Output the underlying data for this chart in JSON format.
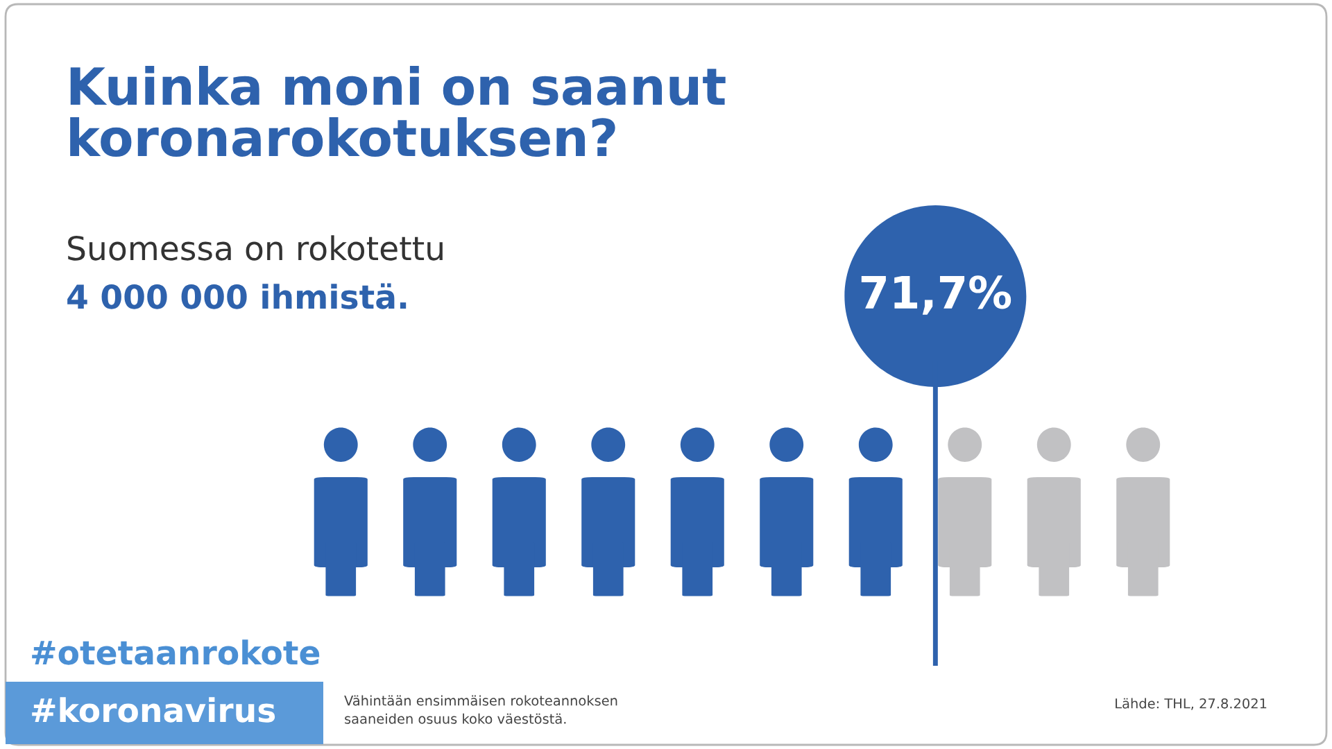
{
  "chart_data": {
    "type": "other",
    "title": "Kuinka moni on saanut\nkoronarokotuksen?",
    "subtitle": "Suomessa on rokotettu",
    "values": [
      71.7
    ],
    "value_labels": [
      "71,7%"
    ],
    "color": "#2e62ad",
    "annotations": [
      "4 000 000 ihmistä.",
      "#otetaanrokote",
      "#koronavirus",
      "Vähintään ensimmäisen rokoteannoksen\nsaaneiden osuus koko väestöstä.",
      "Lähde: THL, 27.8.2021"
    ]
  }
}
